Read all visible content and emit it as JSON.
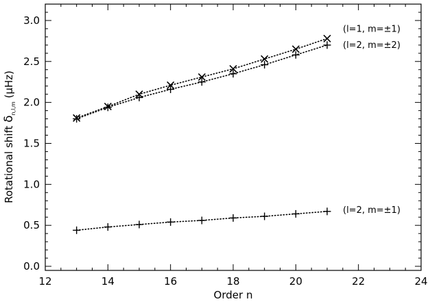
{
  "chart_data": {
    "type": "scatter",
    "title": "",
    "xlabel": "Order n",
    "ylabel": {
      "prefix": "Rotational shift ",
      "symbol": "δ",
      "subscript": "n,l,m",
      "unit_open": " (",
      "unit_mu": "μ",
      "unit_rest": "Hz)"
    },
    "xlim": [
      12,
      24
    ],
    "ylim": [
      -0.05,
      3.2
    ],
    "xticks": [
      12,
      14,
      16,
      18,
      20,
      22,
      24
    ],
    "yticks": [
      0.0,
      0.5,
      1.0,
      1.5,
      2.0,
      2.5,
      3.0
    ],
    "xtick_labels": [
      "12",
      "14",
      "16",
      "18",
      "20",
      "22",
      "24"
    ],
    "ytick_labels": [
      "0.0",
      "0.5",
      "1.0",
      "1.5",
      "2.0",
      "2.5",
      "3.0"
    ],
    "grid": false,
    "legend": "labels at line ends, right",
    "line_style": "dotted",
    "x": [
      13,
      14,
      15,
      16,
      17,
      18,
      19,
      20,
      21
    ],
    "series": [
      {
        "name": "(l=1, m=±1)",
        "marker": "x",
        "values": [
          1.81,
          1.95,
          2.1,
          2.21,
          2.31,
          2.41,
          2.53,
          2.65,
          2.78
        ]
      },
      {
        "name": "(l=2, m=±2)",
        "marker": "+",
        "values": [
          1.8,
          1.94,
          2.06,
          2.16,
          2.25,
          2.35,
          2.46,
          2.58,
          2.7
        ]
      },
      {
        "name": "(l=2, m=±1)",
        "marker": "+",
        "values": [
          0.44,
          0.48,
          0.51,
          0.54,
          0.56,
          0.59,
          0.61,
          0.64,
          0.67
        ]
      }
    ]
  }
}
